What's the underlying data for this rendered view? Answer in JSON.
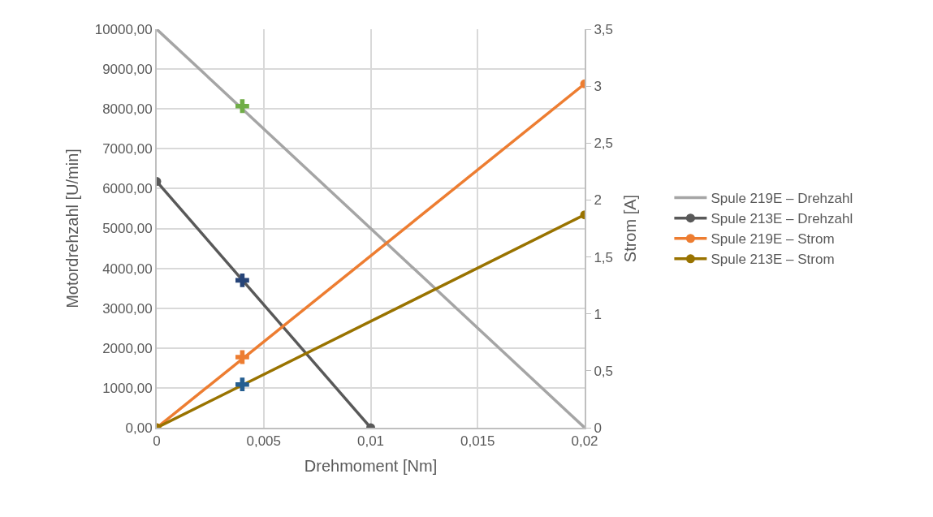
{
  "chart_data": {
    "type": "line",
    "xlabel": "Drehmoment [Nm]",
    "ylabel": "Motordrehzahl [U/min]",
    "y2label": "Strom [A]",
    "xlim": [
      0,
      0.02
    ],
    "xticks": [
      {
        "value": 0,
        "label": "0"
      },
      {
        "value": 0.005,
        "label": "0,005"
      },
      {
        "value": 0.01,
        "label": "0,01"
      },
      {
        "value": 0.015,
        "label": "0,015"
      },
      {
        "value": 0.02,
        "label": "0,02"
      }
    ],
    "ylim": [
      0,
      10000
    ],
    "yticks": [
      {
        "value": 0,
        "label": "0,00"
      },
      {
        "value": 1000,
        "label": "1000,00"
      },
      {
        "value": 2000,
        "label": "2000,00"
      },
      {
        "value": 3000,
        "label": "3000,00"
      },
      {
        "value": 4000,
        "label": "4000,00"
      },
      {
        "value": 5000,
        "label": "5000,00"
      },
      {
        "value": 6000,
        "label": "6000,00"
      },
      {
        "value": 7000,
        "label": "7000,00"
      },
      {
        "value": 8000,
        "label": "8000,00"
      },
      {
        "value": 9000,
        "label": "9000,00"
      },
      {
        "value": 10000,
        "label": "10000,00"
      }
    ],
    "y2lim": [
      0,
      3.5
    ],
    "y2ticks": [
      0,
      {
        "value": 0.5,
        "label": "0,5"
      },
      1,
      {
        "value": 1.5,
        "label": "1,5"
      },
      2,
      {
        "value": 2.5,
        "label": "2,5"
      },
      3,
      {
        "value": 3.5,
        "label": "3,5"
      }
    ],
    "grid": true,
    "legend": "right",
    "series": [
      {
        "name": "Spule 219E – Drehzahl",
        "color": "#a5a5a5",
        "x": [
          0,
          0.02
        ],
        "values": [
          10000,
          0
        ],
        "marker": "none"
      },
      {
        "name": "Spule 213E – Drehzahl",
        "color": "#595959",
        "x": [
          0,
          0.01
        ],
        "values": [
          6180,
          0
        ],
        "marker": "circle"
      },
      {
        "name": "Spule 219E – Strom",
        "color": "#ed7d31",
        "x": [
          0,
          0.02
        ],
        "values": [
          0,
          3.02
        ],
        "axis": "y2",
        "marker": "circle"
      },
      {
        "name": "Spule 213E – Strom",
        "color": "#997300",
        "x": [
          0,
          0.02
        ],
        "values": [
          0,
          1.87
        ],
        "axis": "y2",
        "marker": "circle"
      },
      {
        "type": "scatter",
        "color": "#70ad47",
        "x": [
          0.004
        ],
        "values": [
          8070
        ],
        "marker": "cross"
      },
      {
        "type": "scatter",
        "color": "#264478",
        "x": [
          0.004
        ],
        "values": [
          3700
        ],
        "marker": "cross"
      },
      {
        "type": "scatter",
        "color": "#ed7d31",
        "x": [
          0.004
        ],
        "values": [
          0.62
        ],
        "axis": "y2",
        "marker": "cross"
      },
      {
        "type": "scatter",
        "color": "#255e91",
        "x": [
          0.004
        ],
        "values": [
          0.38
        ],
        "axis": "y2",
        "marker": "cross"
      }
    ]
  }
}
